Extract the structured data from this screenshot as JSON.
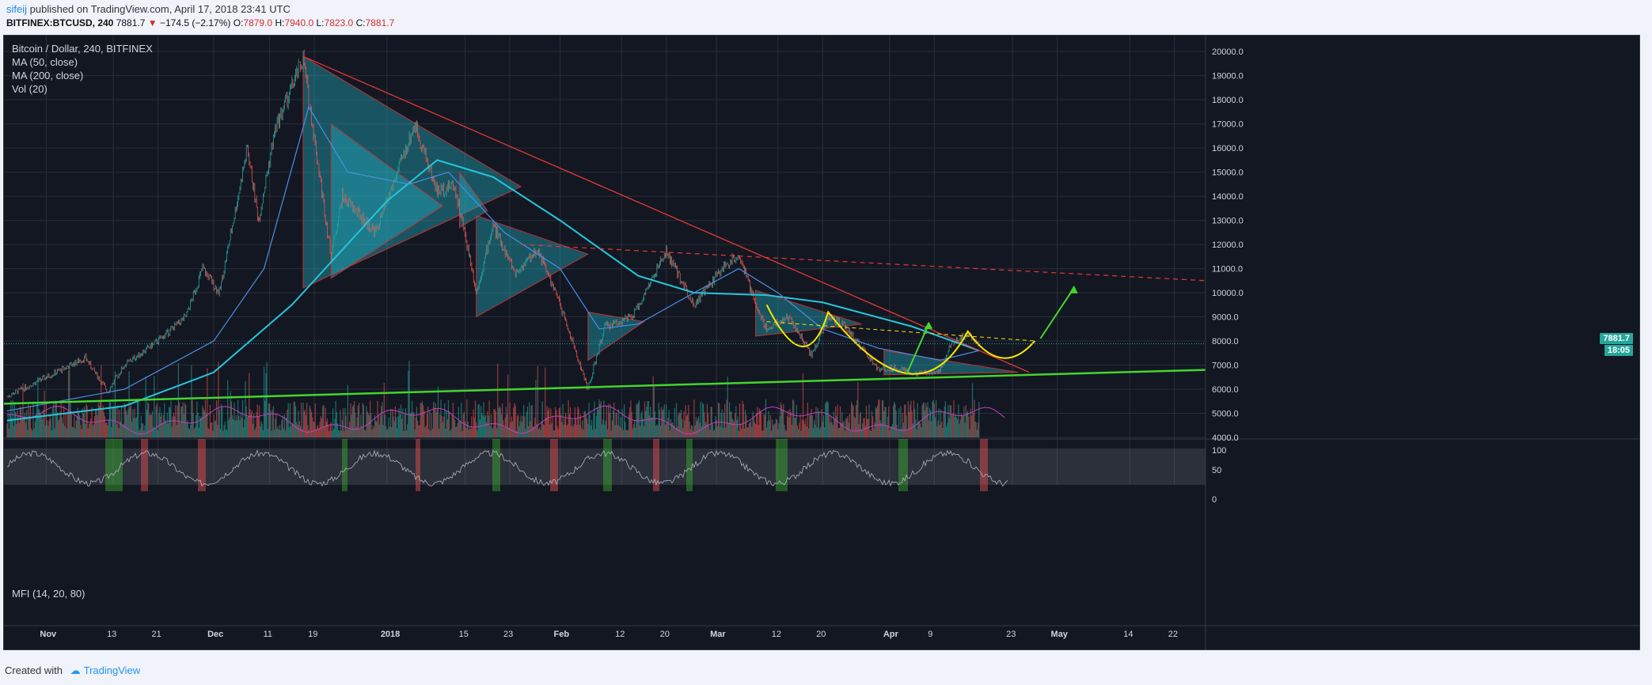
{
  "header": {
    "user": "sifeij",
    "published_text": " published on TradingView.com, April 17, 2018 23:41 UTC",
    "symbol": "BITFINEX:BTCUSD, 240",
    "last": "7881.7",
    "change": "−174.5 (−2.17%)",
    "open_label": "O:",
    "open": "7879.0",
    "high_label": "H:",
    "high": "7940.0",
    "low_label": "L:",
    "low": "7823.0",
    "close_label": "C:",
    "close": "7881.7"
  },
  "legend": {
    "title": "Bitcoin / Dollar, 240, BITFINEX",
    "ma50": "MA (50, close)",
    "ma200": "MA (200, close)",
    "vol": "Vol (20)"
  },
  "mfi_label": "MFI (14, 20, 80)",
  "price_tags": {
    "last": "7881.7",
    "timer": "18:05"
  },
  "footer": {
    "created_with": "Created with",
    "brand": "TradingView"
  },
  "colors": {
    "background": "#131722",
    "up": "#26a69a",
    "down": "#ef5350",
    "ma50": "#4a90e2",
    "ma200": "#26c6da",
    "trendline": "#e53935",
    "support": "#43d62d",
    "cup": "#f5e600",
    "arrow": "#43d62d"
  },
  "chart_data": {
    "type": "line",
    "series_type": "candlestick",
    "y_ticks": [
      "20000.0",
      "19000.0",
      "18000.0",
      "17000.0",
      "16000.0",
      "15000.0",
      "14000.0",
      "13000.0",
      "12000.0",
      "11000.0",
      "10000.0",
      "9000.0",
      "8000.0",
      "7000.0",
      "6000.0",
      "5000.0",
      "4000.0"
    ],
    "ylim": [
      4000,
      20400
    ],
    "x_ticks": [
      "Nov",
      "13",
      "21",
      "Dec",
      "11",
      "19",
      "2018",
      "15",
      "23",
      "Feb",
      "12",
      "20",
      "Mar",
      "12",
      "20",
      "Apr",
      "9",
      "23",
      "May",
      "14",
      "22"
    ],
    "mfi_ticks": [
      "100",
      "50",
      "0"
    ],
    "price_path": [
      [
        "2017-10-25",
        5700
      ],
      [
        "2017-11-01",
        6500
      ],
      [
        "2017-11-08",
        7300
      ],
      [
        "2017-11-12",
        5900
      ],
      [
        "2017-11-15",
        7000
      ],
      [
        "2017-11-21",
        8000
      ],
      [
        "2017-11-26",
        9000
      ],
      [
        "2017-11-29",
        11000
      ],
      [
        "2017-12-02",
        10000
      ],
      [
        "2017-12-07",
        16000
      ],
      [
        "2017-12-09",
        13000
      ],
      [
        "2017-12-12",
        16800
      ],
      [
        "2017-12-17",
        19700
      ],
      [
        "2017-12-22",
        11500
      ],
      [
        "2017-12-24",
        14000
      ],
      [
        "2017-12-30",
        12500
      ],
      [
        "2018-01-06",
        17000
      ],
      [
        "2018-01-10",
        14200
      ],
      [
        "2018-01-13",
        14500
      ],
      [
        "2018-01-16",
        11300
      ],
      [
        "2018-01-17",
        10000
      ],
      [
        "2018-01-20",
        12800
      ],
      [
        "2018-01-24",
        10800
      ],
      [
        "2018-01-28",
        11800
      ],
      [
        "2018-02-01",
        9500
      ],
      [
        "2018-02-06",
        6000
      ],
      [
        "2018-02-09",
        8600
      ],
      [
        "2018-02-14",
        9000
      ],
      [
        "2018-02-20",
        11700
      ],
      [
        "2018-02-25",
        9500
      ],
      [
        "2018-03-02",
        11000
      ],
      [
        "2018-03-05",
        11600
      ],
      [
        "2018-03-08",
        9500
      ],
      [
        "2018-03-10",
        8500
      ],
      [
        "2018-03-14",
        9000
      ],
      [
        "2018-03-18",
        7400
      ],
      [
        "2018-03-21",
        9000
      ],
      [
        "2018-03-24",
        8600
      ],
      [
        "2018-03-30",
        6800
      ],
      [
        "2018-04-02",
        6900
      ],
      [
        "2018-04-06",
        6600
      ],
      [
        "2018-04-10",
        6800
      ],
      [
        "2018-04-12",
        7900
      ],
      [
        "2018-04-15",
        8300
      ],
      [
        "2018-04-17",
        7881.7
      ]
    ],
    "ma50": [
      [
        "2017-10-25",
        5100
      ],
      [
        "2017-11-15",
        6000
      ],
      [
        "2017-12-01",
        8000
      ],
      [
        "2017-12-10",
        11000
      ],
      [
        "2017-12-18",
        17700
      ],
      [
        "2017-12-25",
        15000
      ],
      [
        "2018-01-05",
        14500
      ],
      [
        "2018-01-12",
        15000
      ],
      [
        "2018-01-22",
        12500
      ],
      [
        "2018-02-01",
        11000
      ],
      [
        "2018-02-08",
        8500
      ],
      [
        "2018-02-15",
        8700
      ],
      [
        "2018-02-25",
        10000
      ],
      [
        "2018-03-05",
        11000
      ],
      [
        "2018-03-12",
        10000
      ],
      [
        "2018-03-20",
        8500
      ],
      [
        "2018-03-30",
        7700
      ],
      [
        "2018-04-10",
        7200
      ],
      [
        "2018-04-17",
        7600
      ]
    ],
    "ma200": [
      [
        "2017-10-25",
        4700
      ],
      [
        "2017-11-15",
        5300
      ],
      [
        "2017-12-01",
        6700
      ],
      [
        "2017-12-15",
        9500
      ],
      [
        "2018-01-01",
        13800
      ],
      [
        "2018-01-10",
        15500
      ],
      [
        "2018-01-20",
        14800
      ],
      [
        "2018-02-01",
        13000
      ],
      [
        "2018-02-15",
        10700
      ],
      [
        "2018-02-25",
        10000
      ],
      [
        "2018-03-10",
        9900
      ],
      [
        "2018-03-20",
        9600
      ],
      [
        "2018-04-05",
        8600
      ],
      [
        "2018-04-17",
        7600
      ]
    ],
    "annotations": {
      "last_price": 7881.7
    }
  }
}
